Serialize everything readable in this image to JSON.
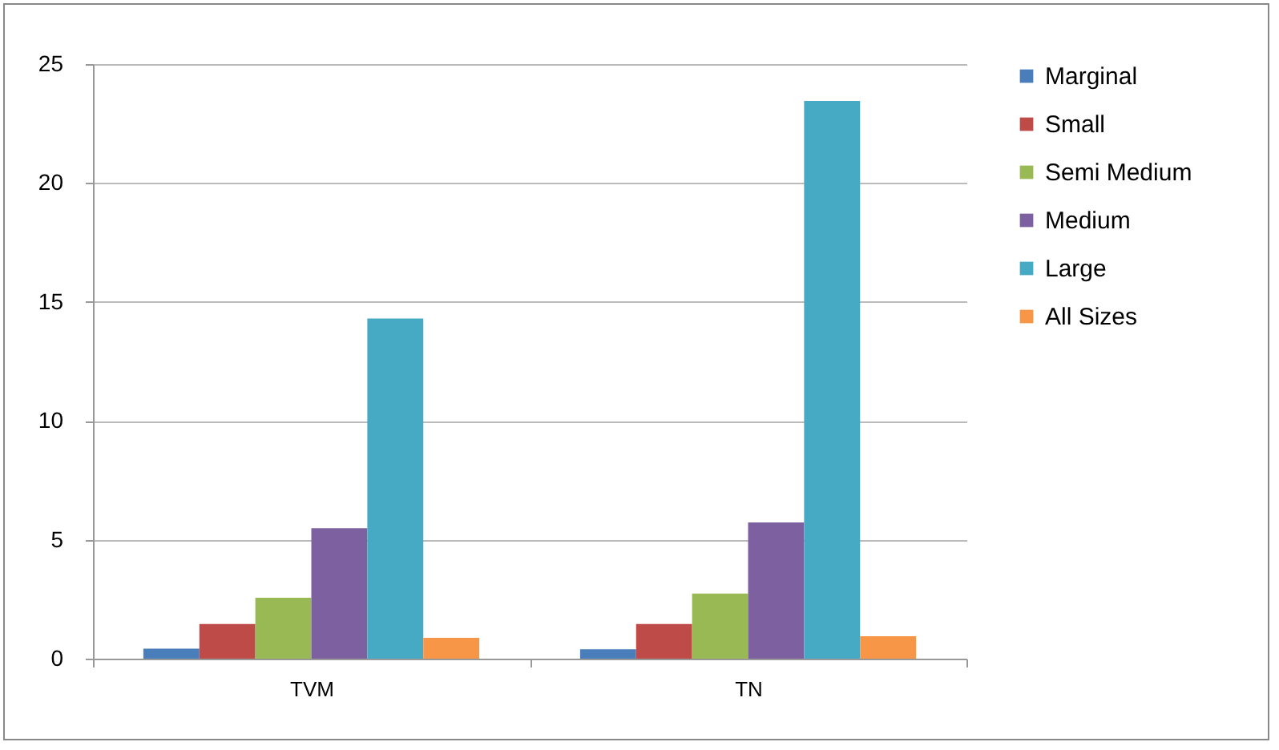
{
  "chart_data": {
    "type": "bar",
    "categories": [
      "TVM",
      "TN"
    ],
    "series": [
      {
        "name": "Marginal",
        "color": "#4a7ebb",
        "values": [
          0.42,
          0.4
        ]
      },
      {
        "name": "Small",
        "color": "#be4b48",
        "values": [
          1.46,
          1.46
        ]
      },
      {
        "name": "Semi Medium",
        "color": "#98b954",
        "values": [
          2.56,
          2.74
        ]
      },
      {
        "name": "Medium",
        "color": "#7d60a0",
        "values": [
          5.48,
          5.73
        ]
      },
      {
        "name": "Large",
        "color": "#46aac5",
        "values": [
          14.3,
          23.45
        ]
      },
      {
        "name": "All Sizes",
        "color": "#f79646",
        "values": [
          0.88,
          0.94
        ]
      }
    ],
    "ylim": [
      0,
      25
    ],
    "yticks": [
      0,
      5,
      10,
      15,
      20,
      25
    ],
    "grid": "y",
    "legend": "right"
  }
}
